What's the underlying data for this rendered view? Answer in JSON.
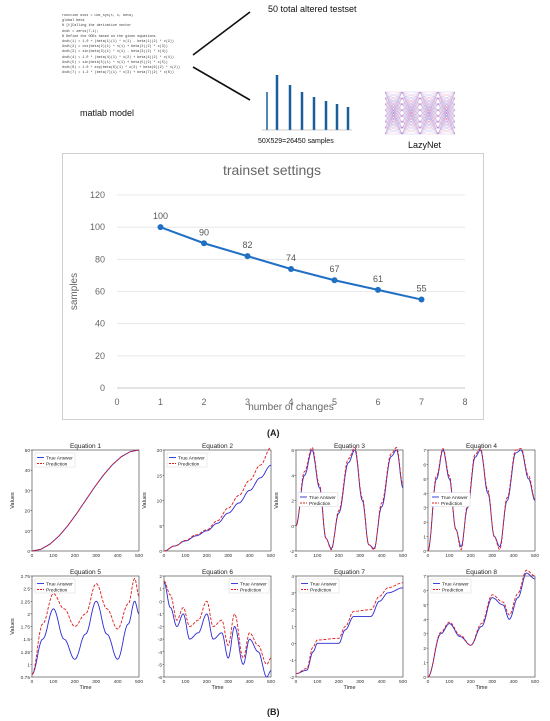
{
  "figure_labels": {
    "a": "(A)",
    "b": "(B)"
  },
  "top": {
    "testset_label": "50 total altered testset",
    "matlab_label": "matlab model",
    "samples_label": "50X529=26450 samples",
    "lazynet_label": "LazyNet",
    "code_lines": [
      "function dxdt = ODE_sys(t, x, beta)",
      "global beta",
      "% [t]Calling the derivative vector",
      "dxdt = zeros(7,1);",
      "",
      "% Define the ODEs based on the given equations",
      "dxdt(1) = 1.0 + (beta(1)(1) * x(1) - beta(1)(2) * x(2))",
      "dxdt(2) = cos(beta(2)(1) * x(1) + beta(2)(2) * x(3))",
      "dxdt(3) = sin(beta(3)(1) * x(1) - beta(3)(2) * x(4))",
      "dxdt(4) = 1.0 * (beta(4)(1) * x(2) + beta(4)(2) * x(4))",
      "dxdt(5) = sin(beta(5)(1) * x(1) + beta(5)(2) * x(5))",
      "dxdt(6) = 1.0 * exp(beta(6)(1) * x(2) + beta(6)(2) * x(2))",
      "dxdt(7) = 1.2 * (beta(7)(1) * x(3) + beta(7)(2) * x(6))"
    ]
  },
  "chart_data": [
    {
      "type": "line",
      "title": "trainset settings",
      "xlabel": "number of changes",
      "ylabel": "samples",
      "x": [
        1,
        2,
        3,
        4,
        5,
        6,
        7
      ],
      "values": [
        100,
        90,
        82,
        74,
        67,
        61,
        55
      ],
      "data_labels": [
        "100",
        "90",
        "82",
        "74",
        "67",
        "61",
        "55"
      ],
      "xlim": [
        0,
        8
      ],
      "ylim": [
        0,
        120
      ],
      "xticks": [
        0,
        1,
        2,
        3,
        4,
        5,
        6,
        7,
        8
      ],
      "yticks": [
        0,
        20,
        40,
        60,
        80,
        100,
        120
      ],
      "color": "#1f6fc5",
      "grid": true
    },
    {
      "type": "line",
      "panels": [
        {
          "title": "Equation 1",
          "ylabel": "Values",
          "xlabel": "",
          "ylim": [
            0,
            50
          ],
          "yticks": [
            0,
            10,
            20,
            30,
            40,
            50
          ],
          "true": [
            [
              0,
              0
            ],
            [
              500,
              50
            ]
          ],
          "pred": [
            [
              0,
              0
            ],
            [
              500,
              50
            ]
          ],
          "legend": "top-left"
        },
        {
          "title": "Equation 2",
          "ylabel": "Values",
          "xlabel": "",
          "ylim": [
            0,
            20
          ],
          "yticks": [
            0,
            5,
            10,
            15,
            20
          ],
          "true": [
            [
              0,
              0
            ],
            [
              50,
              1
            ],
            [
              100,
              2
            ],
            [
              150,
              3
            ],
            [
              200,
              4
            ],
            [
              250,
              5.5
            ],
            [
              300,
              7.5
            ],
            [
              350,
              9.5
            ],
            [
              400,
              12
            ],
            [
              450,
              14.5
            ],
            [
              500,
              17
            ]
          ],
          "pred": [
            [
              0,
              0
            ],
            [
              50,
              1
            ],
            [
              100,
              2.1
            ],
            [
              150,
              3.2
            ],
            [
              200,
              4.2
            ],
            [
              250,
              6
            ],
            [
              300,
              8.5
            ],
            [
              350,
              11
            ],
            [
              400,
              14
            ],
            [
              450,
              17
            ],
            [
              500,
              20.5
            ]
          ],
          "legend": "top-left"
        },
        {
          "title": "Equation 3",
          "ylabel": "Values",
          "xlabel": "",
          "ylim": [
            -2,
            6
          ],
          "yticks": [
            -2,
            0,
            2,
            4,
            6
          ],
          "true": [
            [
              0,
              0
            ],
            [
              40,
              4
            ],
            [
              75,
              6
            ],
            [
              110,
              3
            ],
            [
              140,
              -1
            ],
            [
              165,
              -1.8
            ],
            [
              200,
              1
            ],
            [
              245,
              5
            ],
            [
              275,
              6
            ],
            [
              310,
              2
            ],
            [
              340,
              -1.5
            ],
            [
              365,
              -1.8
            ],
            [
              400,
              1.5
            ],
            [
              445,
              5.5
            ],
            [
              470,
              6
            ],
            [
              500,
              3
            ]
          ],
          "pred": [
            [
              0,
              0
            ],
            [
              40,
              4.3
            ],
            [
              75,
              6.2
            ],
            [
              110,
              3.2
            ],
            [
              140,
              -1
            ],
            [
              165,
              -1.9
            ],
            [
              200,
              1.2
            ],
            [
              245,
              5.3
            ],
            [
              275,
              6.2
            ],
            [
              310,
              2.2
            ],
            [
              340,
              -1.5
            ],
            [
              365,
              -1.9
            ],
            [
              400,
              1.8
            ],
            [
              445,
              5.7
            ],
            [
              470,
              6.2
            ],
            [
              500,
              3.2
            ]
          ],
          "legend": "center"
        },
        {
          "title": "Equation 4",
          "ylabel": "",
          "xlabel": "",
          "ylim": [
            0,
            7
          ],
          "yticks": [
            0,
            1,
            2,
            3,
            4,
            5,
            6,
            7
          ],
          "true": [
            [
              0,
              0
            ],
            [
              40,
              5
            ],
            [
              70,
              7
            ],
            [
              100,
              5
            ],
            [
              130,
              1.5
            ],
            [
              155,
              0.3
            ],
            [
              185,
              3
            ],
            [
              220,
              6.5
            ],
            [
              245,
              7
            ],
            [
              280,
              4
            ],
            [
              310,
              1
            ],
            [
              335,
              0.3
            ],
            [
              370,
              3.5
            ],
            [
              410,
              6.8
            ],
            [
              435,
              7
            ],
            [
              470,
              5
            ],
            [
              500,
              3.5
            ]
          ],
          "pred": [
            [
              0,
              0
            ],
            [
              40,
              5.2
            ],
            [
              70,
              7.1
            ],
            [
              100,
              5.2
            ],
            [
              130,
              1.5
            ],
            [
              155,
              0.1
            ],
            [
              185,
              3.2
            ],
            [
              220,
              6.7
            ],
            [
              245,
              7.1
            ],
            [
              280,
              4.2
            ],
            [
              310,
              1
            ],
            [
              335,
              0.1
            ],
            [
              370,
              3.7
            ],
            [
              410,
              7
            ],
            [
              435,
              7.1
            ],
            [
              470,
              5.2
            ],
            [
              500,
              3.6
            ]
          ],
          "legend": "center"
        },
        {
          "title": "Equation 5",
          "ylabel": "Values",
          "xlabel": "Time",
          "ylim": [
            0.75,
            2.75
          ],
          "yticks": [
            0.75,
            1.0,
            1.25,
            1.5,
            1.75,
            2.0,
            2.25,
            2.5,
            2.75
          ],
          "true": [
            [
              0,
              0.8
            ],
            [
              50,
              1.5
            ],
            [
              100,
              2.1
            ],
            [
              150,
              1.5
            ],
            [
              200,
              1.1
            ],
            [
              250,
              1.6
            ],
            [
              300,
              2.25
            ],
            [
              350,
              1.6
            ],
            [
              400,
              1.1
            ],
            [
              450,
              1.8
            ],
            [
              480,
              2.25
            ],
            [
              500,
              2.0
            ]
          ],
          "pred": [
            [
              0,
              0.8
            ],
            [
              50,
              1.8
            ],
            [
              100,
              2.4
            ],
            [
              150,
              2.1
            ],
            [
              200,
              1.75
            ],
            [
              250,
              2.0
            ],
            [
              300,
              2.6
            ],
            [
              350,
              2.1
            ],
            [
              400,
              1.7
            ],
            [
              450,
              2.2
            ],
            [
              480,
              2.7
            ],
            [
              500,
              2.35
            ]
          ],
          "legend": "top-left"
        },
        {
          "title": "Equation 6",
          "ylabel": "",
          "xlabel": "Time",
          "ylim": [
            -6,
            2
          ],
          "yticks": [
            -6,
            -5,
            -4,
            -3,
            -2,
            -1,
            0,
            1,
            2
          ],
          "true": [
            [
              0,
              1.5
            ],
            [
              30,
              -0.5
            ],
            [
              60,
              -2
            ],
            [
              90,
              -1
            ],
            [
              120,
              -3
            ],
            [
              160,
              -2.5
            ],
            [
              200,
              -1
            ],
            [
              230,
              -3
            ],
            [
              270,
              -2.5
            ],
            [
              300,
              -4.5
            ],
            [
              330,
              -2
            ],
            [
              370,
              -5
            ],
            [
              400,
              -3
            ],
            [
              440,
              -4
            ],
            [
              480,
              -6
            ],
            [
              500,
              -5.5
            ]
          ],
          "pred": [
            [
              0,
              1.6
            ],
            [
              30,
              0.5
            ],
            [
              60,
              -1.5
            ],
            [
              90,
              -0.5
            ],
            [
              120,
              -2
            ],
            [
              160,
              -1.5
            ],
            [
              200,
              0
            ],
            [
              230,
              -2
            ],
            [
              270,
              -1.5
            ],
            [
              300,
              -3.5
            ],
            [
              330,
              -1
            ],
            [
              370,
              -4.5
            ],
            [
              400,
              -2.5
            ],
            [
              440,
              -3.5
            ],
            [
              480,
              -5
            ],
            [
              500,
              -4.5
            ]
          ],
          "legend": "top-right"
        },
        {
          "title": "Equation 7",
          "ylabel": "",
          "xlabel": "Time",
          "ylim": [
            -2,
            4
          ],
          "yticks": [
            -2,
            -1,
            0,
            1,
            2,
            3,
            4
          ],
          "true": [
            [
              0,
              -1.8
            ],
            [
              50,
              -1.6
            ],
            [
              80,
              -0.5
            ],
            [
              100,
              0
            ],
            [
              200,
              0
            ],
            [
              230,
              0.8
            ],
            [
              270,
              1.6
            ],
            [
              350,
              1.6
            ],
            [
              390,
              2.5
            ],
            [
              430,
              3
            ],
            [
              500,
              3.3
            ]
          ],
          "pred": [
            [
              0,
              -1.8
            ],
            [
              50,
              -1.5
            ],
            [
              80,
              -0.2
            ],
            [
              100,
              0.2
            ],
            [
              200,
              0.3
            ],
            [
              230,
              1
            ],
            [
              270,
              1.9
            ],
            [
              350,
              2
            ],
            [
              390,
              2.8
            ],
            [
              430,
              3.3
            ],
            [
              500,
              3.6
            ]
          ],
          "legend": "top-left"
        },
        {
          "title": "Equation 8",
          "ylabel": "",
          "xlabel": "Time",
          "ylim": [
            0,
            7
          ],
          "yticks": [
            0,
            1,
            2,
            3,
            4,
            5,
            6,
            7
          ],
          "true": [
            [
              0,
              0
            ],
            [
              60,
              3
            ],
            [
              100,
              3.7
            ],
            [
              150,
              2.8
            ],
            [
              200,
              2.2
            ],
            [
              250,
              3.5
            ],
            [
              300,
              5.5
            ],
            [
              350,
              5
            ],
            [
              380,
              4
            ],
            [
              420,
              5.5
            ],
            [
              460,
              7.2
            ],
            [
              500,
              6.8
            ]
          ],
          "pred": [
            [
              0,
              0
            ],
            [
              60,
              3.1
            ],
            [
              100,
              3.8
            ],
            [
              150,
              2.9
            ],
            [
              200,
              2.2
            ],
            [
              250,
              3.7
            ],
            [
              300,
              5.7
            ],
            [
              350,
              5.2
            ],
            [
              380,
              4.3
            ],
            [
              420,
              5.8
            ],
            [
              460,
              7.4
            ],
            [
              500,
              7
            ]
          ],
          "legend": "top-left"
        }
      ],
      "series": [
        {
          "name": "True Answer",
          "color": "#2b2bd6"
        },
        {
          "name": "Prediction",
          "color": "#e01c1c"
        }
      ],
      "xlim": [
        0,
        500
      ],
      "xticks": [
        0,
        100,
        200,
        300,
        400,
        500
      ]
    }
  ]
}
